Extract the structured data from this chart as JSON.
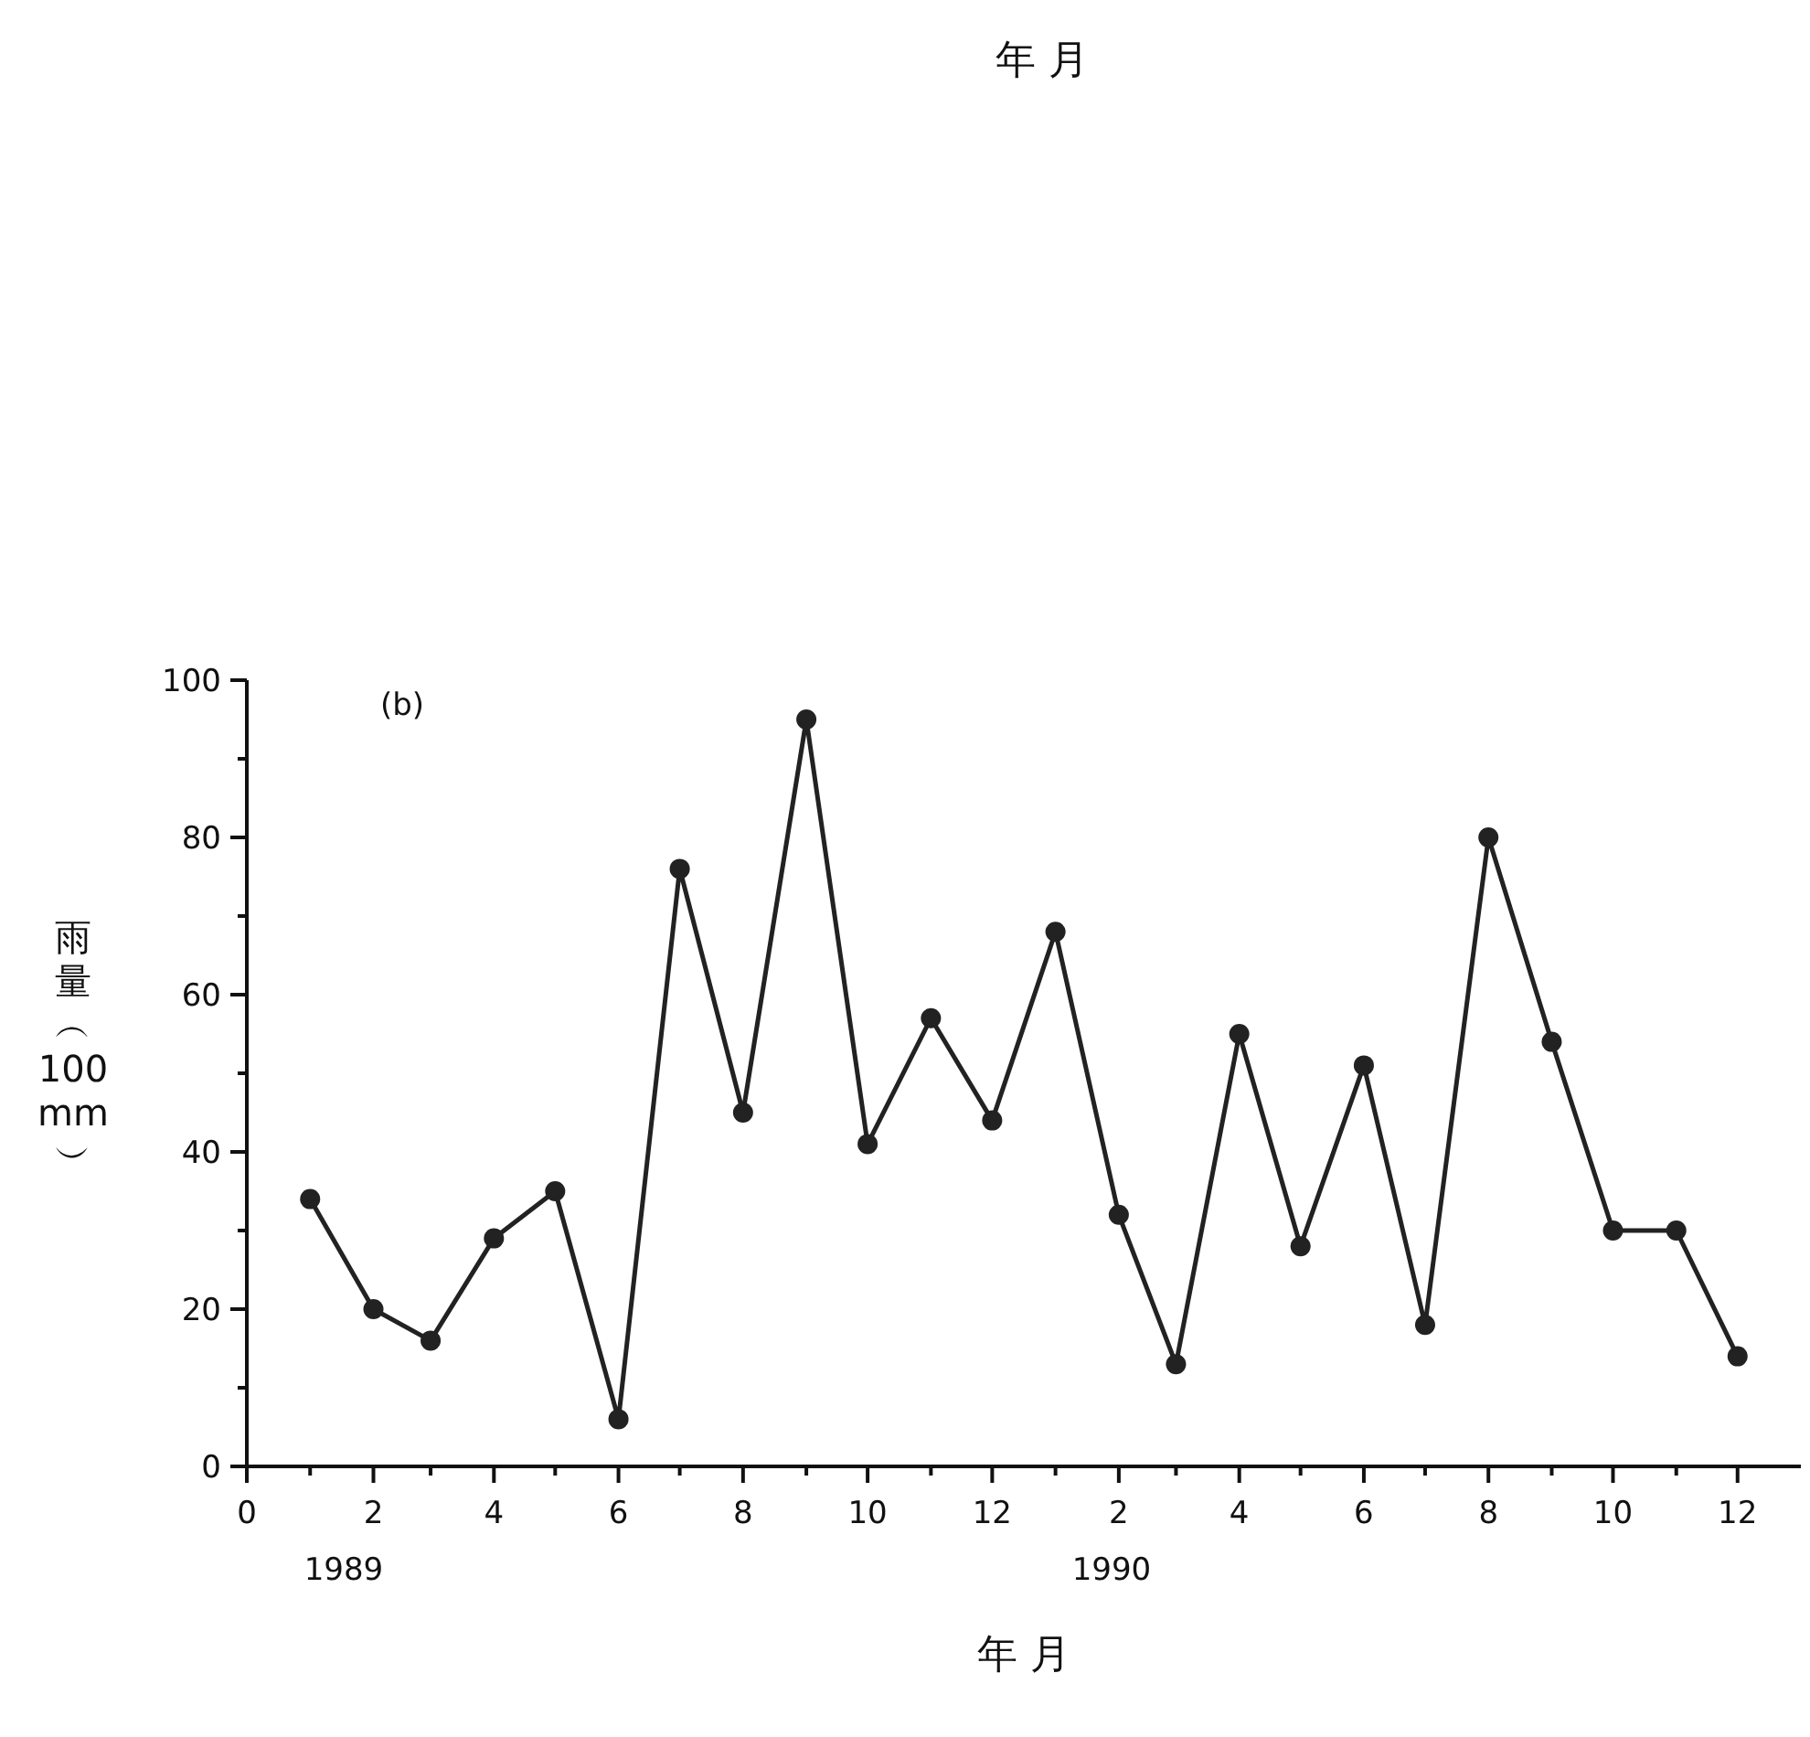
{
  "chart_data": {
    "type": "line",
    "xlabel": "年 月",
    "ylabel": "雨量︵100 mm︶",
    "x": [
      "1989-01",
      "1989-02",
      "1989-03",
      "1989-04",
      "1989-05",
      "1989-06",
      "1989-07",
      "1989-08",
      "1989-09",
      "1989-10",
      "1989-11",
      "1989-12",
      "1990-01",
      "1990-02",
      "1990-03",
      "1990-04",
      "1990-05",
      "1990-06",
      "1990-07",
      "1990-08",
      "1990-09",
      "1990-10",
      "1990-11",
      "1990-12"
    ],
    "series": [
      {
        "color": "#222222",
        "values": [
          34,
          20,
          16,
          29,
          35,
          6,
          76,
          45,
          95,
          41,
          57,
          44,
          68,
          32,
          13,
          55,
          28,
          51,
          18,
          80,
          54,
          30,
          30,
          14
        ]
      }
    ],
    "marker": "circle",
    "line_style": "solid",
    "grid": false,
    "xlim": [
      "1988-12",
      "1991-01"
    ],
    "ylim": [
      0,
      100
    ],
    "xticks": [
      {
        "value": "1988-12",
        "label": "0"
      },
      {
        "value": "1989-01",
        "label": null
      },
      {
        "value": "1989-02",
        "label": "2"
      },
      {
        "value": "1989-03",
        "label": null
      },
      {
        "value": "1989-04",
        "label": "4"
      },
      {
        "value": "1989-05",
        "label": null
      },
      {
        "value": "1989-06",
        "label": "6"
      },
      {
        "value": "1989-07",
        "label": null
      },
      {
        "value": "1989-08",
        "label": "8"
      },
      {
        "value": "1989-09",
        "label": null
      },
      {
        "value": "1989-10",
        "label": "10"
      },
      {
        "value": "1989-11",
        "label": null
      },
      {
        "value": "1989-12",
        "label": "12"
      },
      {
        "value": "1990-01",
        "label": null
      },
      {
        "value": "1990-02",
        "label": "2"
      },
      {
        "value": "1990-03",
        "label": null
      },
      {
        "value": "1990-04",
        "label": "4"
      },
      {
        "value": "1990-05",
        "label": null
      },
      {
        "value": "1990-06",
        "label": "6"
      },
      {
        "value": "1990-07",
        "label": null
      },
      {
        "value": "1990-08",
        "label": "8"
      },
      {
        "value": "1990-09",
        "label": null
      },
      {
        "value": "1990-10",
        "label": "10"
      },
      {
        "value": "1990-11",
        "label": null
      },
      {
        "value": "1990-12",
        "label": "12"
      }
    ],
    "yticks": [
      0,
      {
        "value": 10,
        "label": null
      },
      20,
      {
        "value": 30,
        "label": null
      },
      40,
      {
        "value": 50,
        "label": null
      },
      60,
      {
        "value": 70,
        "label": null
      },
      80,
      {
        "value": 90,
        "label": null
      },
      100
    ],
    "annotations": [
      "年 月",
      "(b)",
      "1989",
      "1990"
    ]
  }
}
